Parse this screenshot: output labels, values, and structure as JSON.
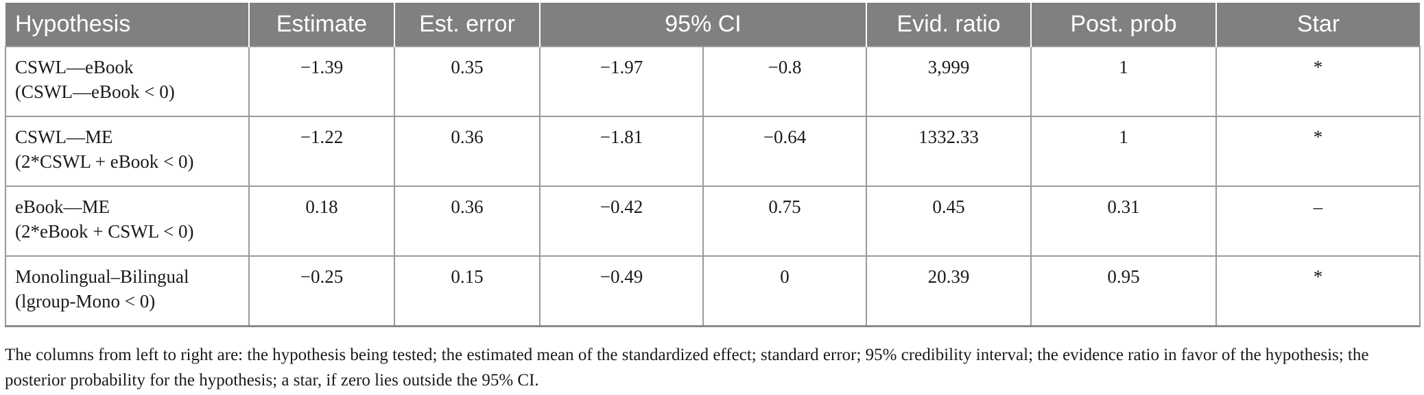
{
  "header": {
    "hypothesis": "Hypothesis",
    "estimate": "Estimate",
    "est_error": "Est. error",
    "ci": "95% CI",
    "evid_ratio": "Evid. ratio",
    "post_prob": "Post. prob",
    "star": "Star"
  },
  "rows": [
    {
      "hyp_line1": "CSWL—eBook",
      "hyp_line2": "(CSWL—eBook < 0)",
      "estimate": "−1.39",
      "est_error": "0.35",
      "ci_low": "−1.97",
      "ci_high": "−0.8",
      "evid_ratio": "3,999",
      "post_prob": "1",
      "star": "*"
    },
    {
      "hyp_line1": "CSWL—ME",
      "hyp_line2": "(2*CSWL + eBook < 0)",
      "estimate": "−1.22",
      "est_error": "0.36",
      "ci_low": "−1.81",
      "ci_high": "−0.64",
      "evid_ratio": "1332.33",
      "post_prob": "1",
      "star": "*"
    },
    {
      "hyp_line1": "eBook—ME",
      "hyp_line2": "(2*eBook + CSWL < 0)",
      "estimate": "0.18",
      "est_error": "0.36",
      "ci_low": "−0.42",
      "ci_high": "0.75",
      "evid_ratio": "0.45",
      "post_prob": "0.31",
      "star": "–"
    },
    {
      "hyp_line1": "Monolingual–Bilingual",
      "hyp_line2": "(lgroup-Mono < 0)",
      "estimate": "−0.25",
      "est_error": "0.15",
      "ci_low": "−0.49",
      "ci_high": "0",
      "evid_ratio": "20.39",
      "post_prob": "0.95",
      "star": "*"
    }
  ],
  "footnote": "The columns from left to right are: the hypothesis being tested; the estimated mean of the standardized effect; standard error; 95% credibility interval; the evidence ratio in favor of the hypothesis; the posterior probability for the hypothesis; a star, if zero lies outside the 95% CI."
}
